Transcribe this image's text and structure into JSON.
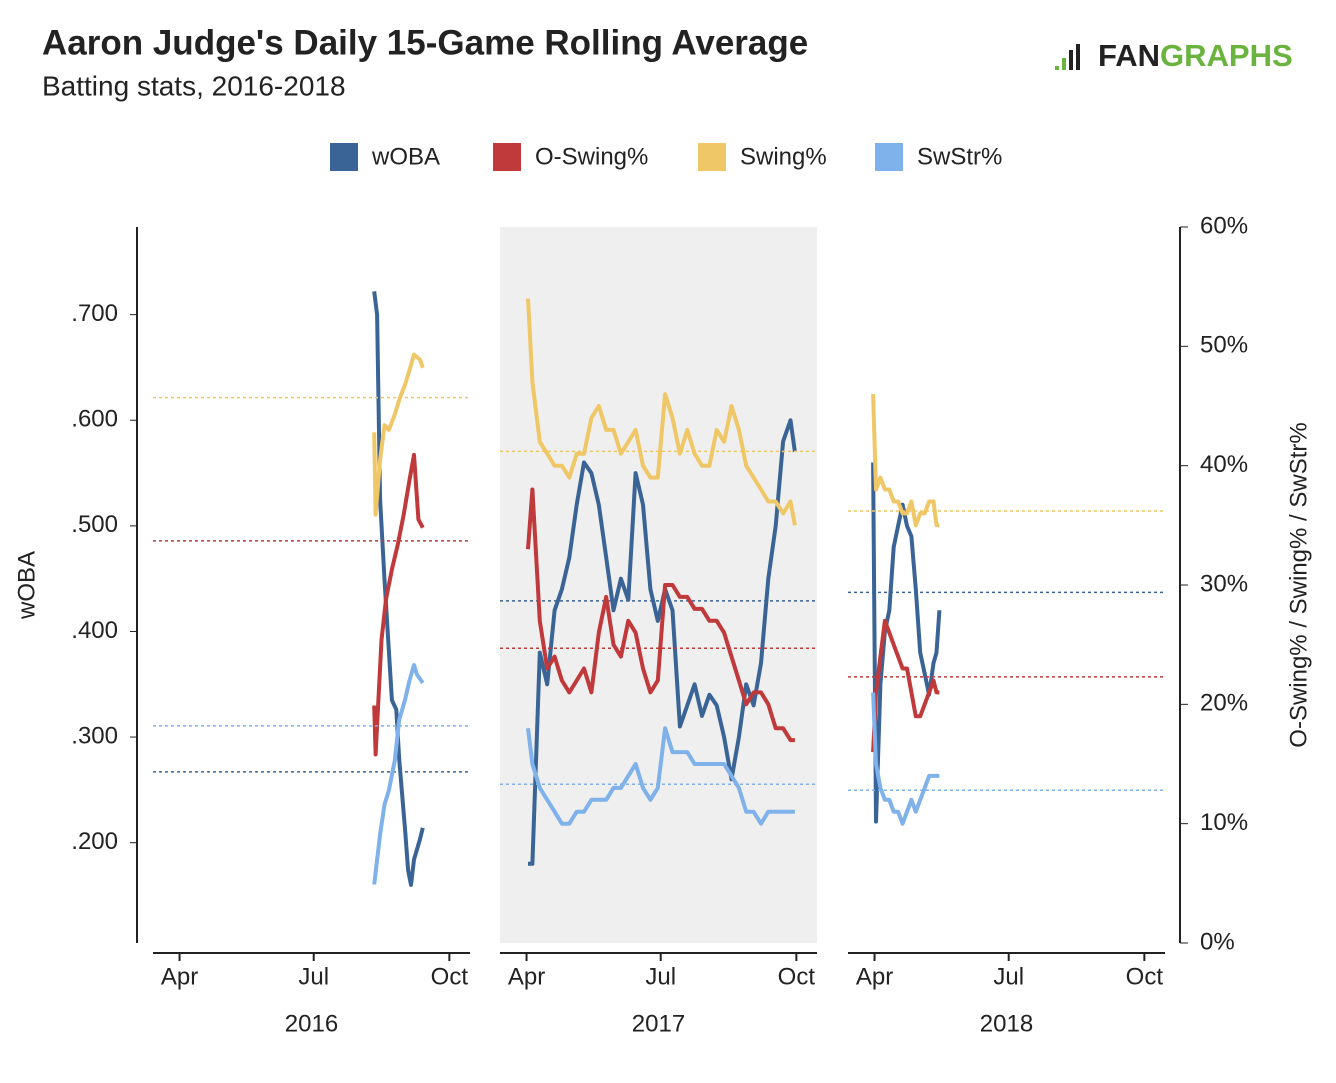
{
  "header": {
    "title": "Aaron Judge's Daily 15-Game Rolling Average",
    "subtitle": "Batting stats, 2016-2018",
    "logo": {
      "part1": "FAN",
      "part2": "GRAPHS"
    }
  },
  "chart_data": [
    {
      "type": "line",
      "xlabel": "2016",
      "xlim": [
        73,
        288
      ],
      "xticks": [
        {
          "value": 91,
          "label": "Apr"
        },
        {
          "value": 182,
          "label": "Jul"
        },
        {
          "value": 274,
          "label": "Oct"
        }
      ],
      "ylim": [
        0.105,
        0.783
      ],
      "y2lim": [
        0,
        60
      ],
      "ylabel": "wOBA",
      "yticks": [
        {
          "value": 0.2,
          "label": ".200"
        },
        {
          "value": 0.3,
          "label": ".300"
        },
        {
          "value": 0.4,
          "label": ".400"
        },
        {
          "value": 0.5,
          "label": ".500"
        },
        {
          "value": 0.6,
          "label": ".600"
        },
        {
          "value": 0.7,
          "label": ".700"
        }
      ],
      "shaded": false,
      "series": [
        {
          "name": "wOBA",
          "color": "#3a6496",
          "x": [
            223,
            225,
            227,
            230,
            235,
            238,
            240,
            244,
            246,
            248,
            250,
            254,
            256
          ],
          "values": [
            0.722,
            0.7,
            0.525,
            0.449,
            0.335,
            0.326,
            0.279,
            0.212,
            0.174,
            0.16,
            0.184,
            0.203,
            0.214
          ],
          "average": 0.267
        },
        {
          "name": "O-Swing%",
          "color": "#c0393b",
          "axis": "y2",
          "x": [
            223,
            224,
            228,
            231,
            235,
            239,
            243,
            247,
            250,
            253,
            256
          ],
          "values": [
            19.9,
            15.8,
            25.4,
            28.8,
            31.3,
            33.4,
            35.9,
            38.8,
            40.9,
            35.5,
            34.8
          ],
          "average": 33.7
        },
        {
          "name": "Swing%",
          "color": "#f0c767",
          "axis": "y2",
          "x": [
            223,
            224,
            227,
            230,
            233,
            237,
            240,
            244,
            247,
            250,
            254,
            256
          ],
          "values": [
            42.8,
            35.9,
            40.5,
            43.4,
            43.0,
            44.3,
            45.5,
            46.8,
            48.0,
            49.3,
            48.9,
            48.2
          ],
          "average": 45.7
        },
        {
          "name": "SwStr%",
          "color": "#7fb1ea",
          "axis": "y2",
          "x": [
            223,
            227,
            230,
            233,
            237,
            240,
            244,
            247,
            250,
            252,
            256
          ],
          "values": [
            4.9,
            9.1,
            11.6,
            12.8,
            15.3,
            18.7,
            20.4,
            22.0,
            23.3,
            22.5,
            21.8
          ],
          "average": 18.2
        }
      ]
    },
    {
      "type": "line",
      "xlabel": "2017",
      "xlim": [
        73,
        288
      ],
      "xticks": [
        {
          "value": 91,
          "label": "Apr"
        },
        {
          "value": 182,
          "label": "Jul"
        },
        {
          "value": 274,
          "label": "Oct"
        }
      ],
      "ylim": [
        0.105,
        0.783
      ],
      "y2lim": [
        0,
        60
      ],
      "shaded": true,
      "series": [
        {
          "name": "wOBA",
          "color": "#3a6496",
          "x": [
            92,
            95,
            100,
            105,
            110,
            115,
            120,
            125,
            130,
            135,
            140,
            145,
            150,
            155,
            160,
            165,
            170,
            175,
            180,
            185,
            190,
            195,
            200,
            205,
            210,
            215,
            220,
            225,
            230,
            235,
            240,
            245,
            250,
            255,
            260,
            265,
            270,
            273
          ],
          "values": [
            0.18,
            0.18,
            0.38,
            0.35,
            0.42,
            0.44,
            0.47,
            0.52,
            0.56,
            0.55,
            0.52,
            0.47,
            0.42,
            0.45,
            0.43,
            0.55,
            0.52,
            0.44,
            0.41,
            0.44,
            0.42,
            0.31,
            0.33,
            0.35,
            0.32,
            0.34,
            0.33,
            0.3,
            0.26,
            0.3,
            0.35,
            0.33,
            0.37,
            0.45,
            0.5,
            0.58,
            0.6,
            0.57
          ],
          "average": 0.429
        },
        {
          "name": "O-Swing%",
          "color": "#c0393b",
          "axis": "y2",
          "x": [
            92,
            95,
            100,
            105,
            110,
            115,
            120,
            125,
            130,
            135,
            140,
            145,
            150,
            155,
            160,
            165,
            170,
            175,
            180,
            185,
            190,
            195,
            200,
            205,
            210,
            215,
            220,
            225,
            230,
            235,
            240,
            245,
            250,
            255,
            260,
            265,
            270,
            273
          ],
          "values": [
            33,
            38,
            27,
            23,
            24,
            22,
            21,
            22,
            23,
            21,
            26,
            29,
            25,
            24,
            27,
            26,
            23,
            21,
            22,
            30,
            30,
            29,
            29,
            28,
            28,
            27,
            27,
            26,
            24,
            22,
            20,
            21,
            21,
            20,
            18,
            18,
            17,
            17
          ],
          "average": 24.7
        },
        {
          "name": "Swing%",
          "color": "#f0c767",
          "axis": "y2",
          "x": [
            92,
            95,
            100,
            105,
            110,
            115,
            120,
            125,
            130,
            135,
            140,
            145,
            150,
            155,
            160,
            165,
            170,
            175,
            180,
            185,
            190,
            195,
            200,
            205,
            210,
            215,
            220,
            225,
            230,
            235,
            240,
            245,
            250,
            255,
            260,
            265,
            270,
            273
          ],
          "values": [
            54,
            47,
            42,
            41,
            40,
            40,
            39,
            41,
            41,
            44,
            45,
            43,
            43,
            41,
            42,
            43,
            40,
            39,
            39,
            46,
            44,
            41,
            43,
            41,
            40,
            40,
            43,
            42,
            45,
            43,
            40,
            39,
            38,
            37,
            37,
            36,
            37,
            35
          ],
          "average": 41.2
        },
        {
          "name": "SwStr%",
          "color": "#7fb1ea",
          "axis": "y2",
          "x": [
            92,
            95,
            100,
            105,
            110,
            115,
            120,
            125,
            130,
            135,
            140,
            145,
            150,
            155,
            160,
            165,
            170,
            175,
            180,
            185,
            190,
            195,
            200,
            205,
            210,
            215,
            220,
            225,
            230,
            235,
            240,
            245,
            250,
            255,
            260,
            265,
            270,
            273
          ],
          "values": [
            18,
            15,
            13,
            12,
            11,
            10,
            10,
            11,
            11,
            12,
            12,
            12,
            13,
            13,
            14,
            15,
            13,
            12,
            13,
            18,
            16,
            16,
            16,
            15,
            15,
            15,
            15,
            15,
            14,
            13,
            11,
            11,
            10,
            11,
            11,
            11,
            11,
            11
          ],
          "average": 13.3
        }
      ]
    },
    {
      "type": "line",
      "xlabel": "2018",
      "xlim": [
        73,
        288
      ],
      "xticks": [
        {
          "value": 91,
          "label": "Apr"
        },
        {
          "value": 182,
          "label": "Jul"
        },
        {
          "value": 274,
          "label": "Oct"
        }
      ],
      "ylim": [
        0.105,
        0.783
      ],
      "y2lim": [
        0,
        60
      ],
      "y2label": "O-Swing% / Swing% / SwStr%",
      "y2ticks": [
        {
          "value": 0,
          "label": "0%"
        },
        {
          "value": 10,
          "label": "10%"
        },
        {
          "value": 20,
          "label": "20%"
        },
        {
          "value": 30,
          "label": "30%"
        },
        {
          "value": 40,
          "label": "40%"
        },
        {
          "value": 50,
          "label": "50%"
        },
        {
          "value": 60,
          "label": "60%"
        }
      ],
      "shaded": false,
      "series": [
        {
          "name": "wOBA",
          "color": "#3a6496",
          "x": [
            90,
            92,
            95,
            98,
            101,
            104,
            107,
            110,
            113,
            116,
            119,
            122,
            125,
            128,
            131,
            133,
            135
          ],
          "values": [
            0.56,
            0.22,
            0.35,
            0.4,
            0.42,
            0.48,
            0.5,
            0.52,
            0.5,
            0.49,
            0.44,
            0.38,
            0.36,
            0.34,
            0.37,
            0.38,
            0.42
          ],
          "average": 0.437
        },
        {
          "name": "O-Swing%",
          "color": "#c0393b",
          "axis": "y2",
          "x": [
            90,
            92,
            95,
            98,
            101,
            104,
            107,
            110,
            113,
            116,
            119,
            122,
            125,
            128,
            131,
            133,
            135
          ],
          "values": [
            16,
            21,
            24,
            27,
            26,
            25,
            24,
            23,
            23,
            21,
            19,
            19,
            20,
            21,
            22,
            21,
            21
          ],
          "average": 22.3
        },
        {
          "name": "Swing%",
          "color": "#f0c767",
          "axis": "y2",
          "x": [
            90,
            92,
            95,
            98,
            101,
            104,
            107,
            110,
            113,
            116,
            119,
            122,
            125,
            128,
            131,
            133,
            135
          ],
          "values": [
            46,
            38,
            39,
            38,
            38,
            37,
            37,
            36,
            36,
            37,
            35,
            36,
            36,
            37,
            37,
            35,
            35
          ],
          "average": 36.2
        },
        {
          "name": "SwStr%",
          "color": "#7fb1ea",
          "axis": "y2",
          "x": [
            90,
            92,
            95,
            98,
            101,
            104,
            107,
            110,
            113,
            116,
            119,
            122,
            125,
            128,
            131,
            133,
            135
          ],
          "values": [
            21,
            15,
            13,
            12,
            12,
            11,
            11,
            10,
            11,
            12,
            11,
            12,
            13,
            14,
            14,
            14,
            14
          ],
          "average": 12.8
        }
      ]
    }
  ]
}
